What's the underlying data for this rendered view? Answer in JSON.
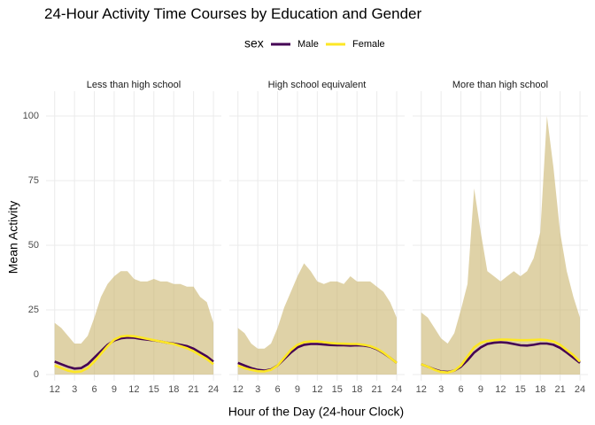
{
  "chart_data": {
    "type": "line",
    "title": "24-Hour Activity Time Courses by Education and Gender",
    "legend_title": "sex",
    "xlabel": "Hour of the Day (24-hour Clock)",
    "ylabel": "Mean Activity",
    "xlim": [
      -1.3,
      25.2
    ],
    "ylim": [
      -2.4,
      109.6
    ],
    "xticks": [
      {
        "value": 0,
        "label": "12"
      },
      3,
      6,
      9,
      12,
      15,
      18,
      21,
      24
    ],
    "yticks": [
      0,
      25,
      50,
      75,
      100
    ],
    "grid": true,
    "x": [
      0,
      1,
      2,
      3,
      4,
      5,
      6,
      7,
      8,
      9,
      10,
      11,
      12,
      13,
      14,
      15,
      16,
      17,
      18,
      19,
      20,
      21,
      22,
      23,
      24
    ],
    "facets": [
      {
        "title": "Less than high school",
        "band": {
          "color": "#c9b46c",
          "high": [
            20,
            18,
            15,
            12,
            12,
            15,
            22,
            30,
            35,
            38,
            40,
            40,
            37,
            36,
            36,
            37,
            36,
            36,
            35,
            35,
            34,
            34,
            30,
            28,
            20
          ]
        },
        "series": [
          {
            "name": "Male",
            "color": "#440154",
            "values": [
              5,
              4,
              3,
              2.3,
              2.5,
              4,
              6.5,
              9,
              11.5,
              13.2,
              14,
              14.3,
              14.2,
              13.8,
              13.5,
              13.2,
              12.8,
              12.3,
              12,
              11.5,
              11,
              10,
              8.5,
              7,
              5
            ]
          },
          {
            "name": "Female",
            "color": "#FDE725",
            "values": [
              3.5,
              2.5,
              1.5,
              1,
              1.2,
              2.5,
              5,
              8,
              11,
              13.5,
              14.7,
              15,
              14.8,
              14.3,
              13.8,
              13.3,
              12.8,
              12.3,
              11.8,
              11,
              10.2,
              9,
              7.5,
              6,
              4
            ]
          }
        ]
      },
      {
        "title": "High school equivalent",
        "band": {
          "color": "#c9b46c",
          "high": [
            18,
            16,
            12,
            10,
            10,
            12,
            18,
            26,
            32,
            38,
            43,
            40,
            36,
            35,
            36,
            36,
            35,
            38,
            36,
            36,
            36,
            34,
            32,
            28,
            22
          ]
        },
        "series": [
          {
            "name": "Male",
            "color": "#440154",
            "values": [
              4.5,
              3.5,
              2.5,
              1.8,
              1.5,
              2,
              3.5,
              6,
              8.5,
              10.5,
              11.5,
              11.8,
              11.8,
              11.6,
              11.4,
              11.3,
              11.3,
              11.2,
              11.3,
              11.2,
              10.8,
              9.8,
              8.3,
              6.5,
              4.5
            ]
          },
          {
            "name": "Female",
            "color": "#FDE725",
            "values": [
              3.5,
              2.5,
              1.8,
              1.3,
              1.2,
              1.8,
              3.5,
              6.5,
              9.5,
              11.5,
              12.5,
              12.8,
              12.8,
              12.5,
              12.2,
              12,
              11.9,
              11.8,
              11.8,
              11.5,
              11,
              10,
              8.5,
              6.5,
              4.5
            ]
          }
        ]
      },
      {
        "title": "More than high school",
        "band": {
          "color": "#c9b46c",
          "high": [
            24,
            22,
            18,
            14,
            12,
            16,
            25,
            35,
            72,
            55,
            40,
            38,
            36,
            38,
            40,
            38,
            40,
            45,
            55,
            100,
            80,
            55,
            40,
            30,
            22
          ]
        },
        "series": [
          {
            "name": "Male",
            "color": "#440154",
            "values": [
              4,
              3,
              2,
              1.2,
              1,
              1.5,
              3,
              5.5,
              8.5,
              10.5,
              11.8,
              12.3,
              12.5,
              12.3,
              11.8,
              11.3,
              11.2,
              11.5,
              12,
              12,
              11.5,
              10.3,
              8.5,
              6.5,
              4.5
            ]
          },
          {
            "name": "Female",
            "color": "#FDE725",
            "values": [
              4,
              3,
              1.8,
              1,
              0.8,
              1.5,
              3.5,
              7,
              10.5,
              12.3,
              13,
              13.3,
              13.5,
              13.5,
              13.4,
              13.3,
              13.3,
              13.4,
              13.5,
              13.3,
              12.8,
              11.5,
              9.5,
              7.5,
              5
            ]
          }
        ]
      }
    ]
  }
}
